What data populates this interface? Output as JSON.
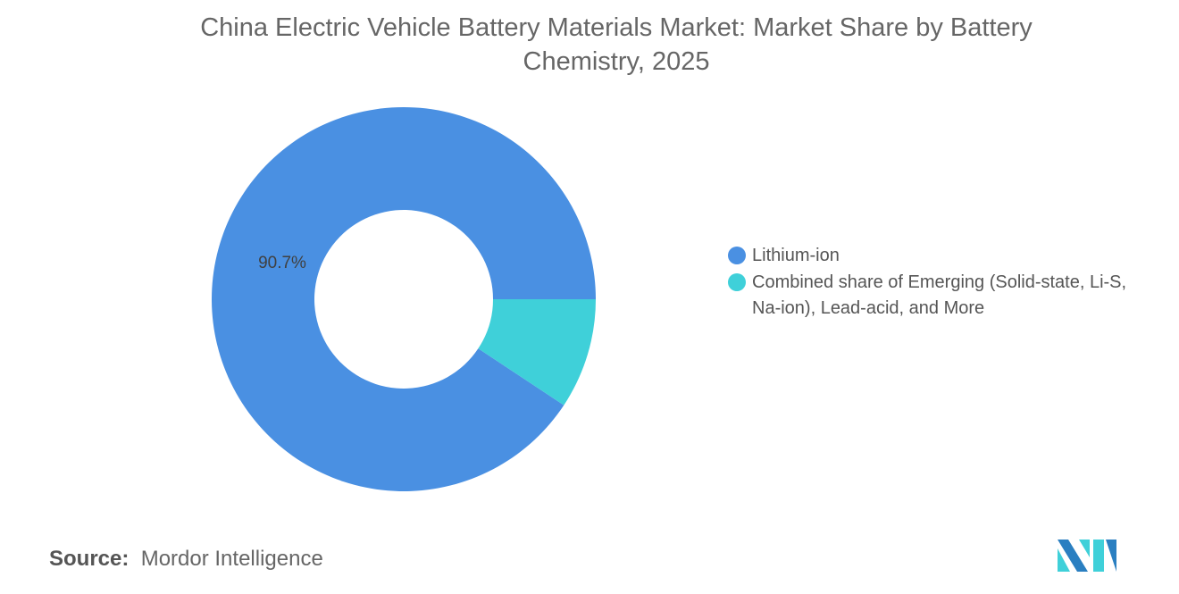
{
  "chart_data": {
    "type": "pie",
    "variant": "donut",
    "title": "China Electric Vehicle Battery Materials Market: Market Share by Battery Chemistry, 2025",
    "categories": [
      "Lithium-ion",
      "Combined share of Emerging (Solid-state, Li-S, Na-ion), Lead-acid, and More"
    ],
    "values": [
      90.7,
      9.3
    ],
    "unit": "%",
    "data_labels": [
      "90.7%",
      ""
    ],
    "colors": [
      "#4a90e2",
      "#3fd0d9"
    ],
    "legend_position": "right"
  },
  "source": {
    "label": "Source:",
    "text": "Mordor Intelligence"
  },
  "logo": {
    "name": "mordor-intelligence-logo",
    "colors": [
      "#2a7fc1",
      "#3fd0d9"
    ]
  }
}
